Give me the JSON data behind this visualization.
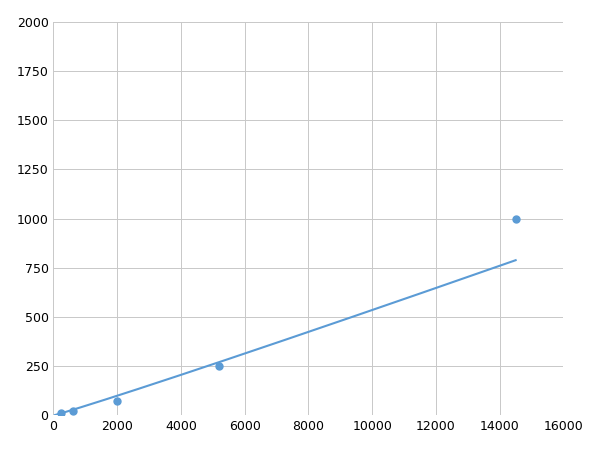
{
  "x": [
    250,
    600,
    2000,
    5200,
    14500
  ],
  "y": [
    15,
    25,
    75,
    250,
    1000
  ],
  "line_color": "#5b9bd5",
  "marker_color": "#5b9bd5",
  "marker_size": 5,
  "marker_style": "o",
  "xlim": [
    0,
    16000
  ],
  "ylim": [
    0,
    2000
  ],
  "xticks": [
    0,
    2000,
    4000,
    6000,
    8000,
    10000,
    12000,
    14000,
    16000
  ],
  "yticks": [
    0,
    250,
    500,
    750,
    1000,
    1250,
    1500,
    1750,
    2000
  ],
  "grid": true,
  "grid_color": "#c8c8c8",
  "background_color": "#ffffff",
  "tick_fontsize": 9,
  "figsize": [
    6.0,
    4.5
  ],
  "dpi": 100
}
